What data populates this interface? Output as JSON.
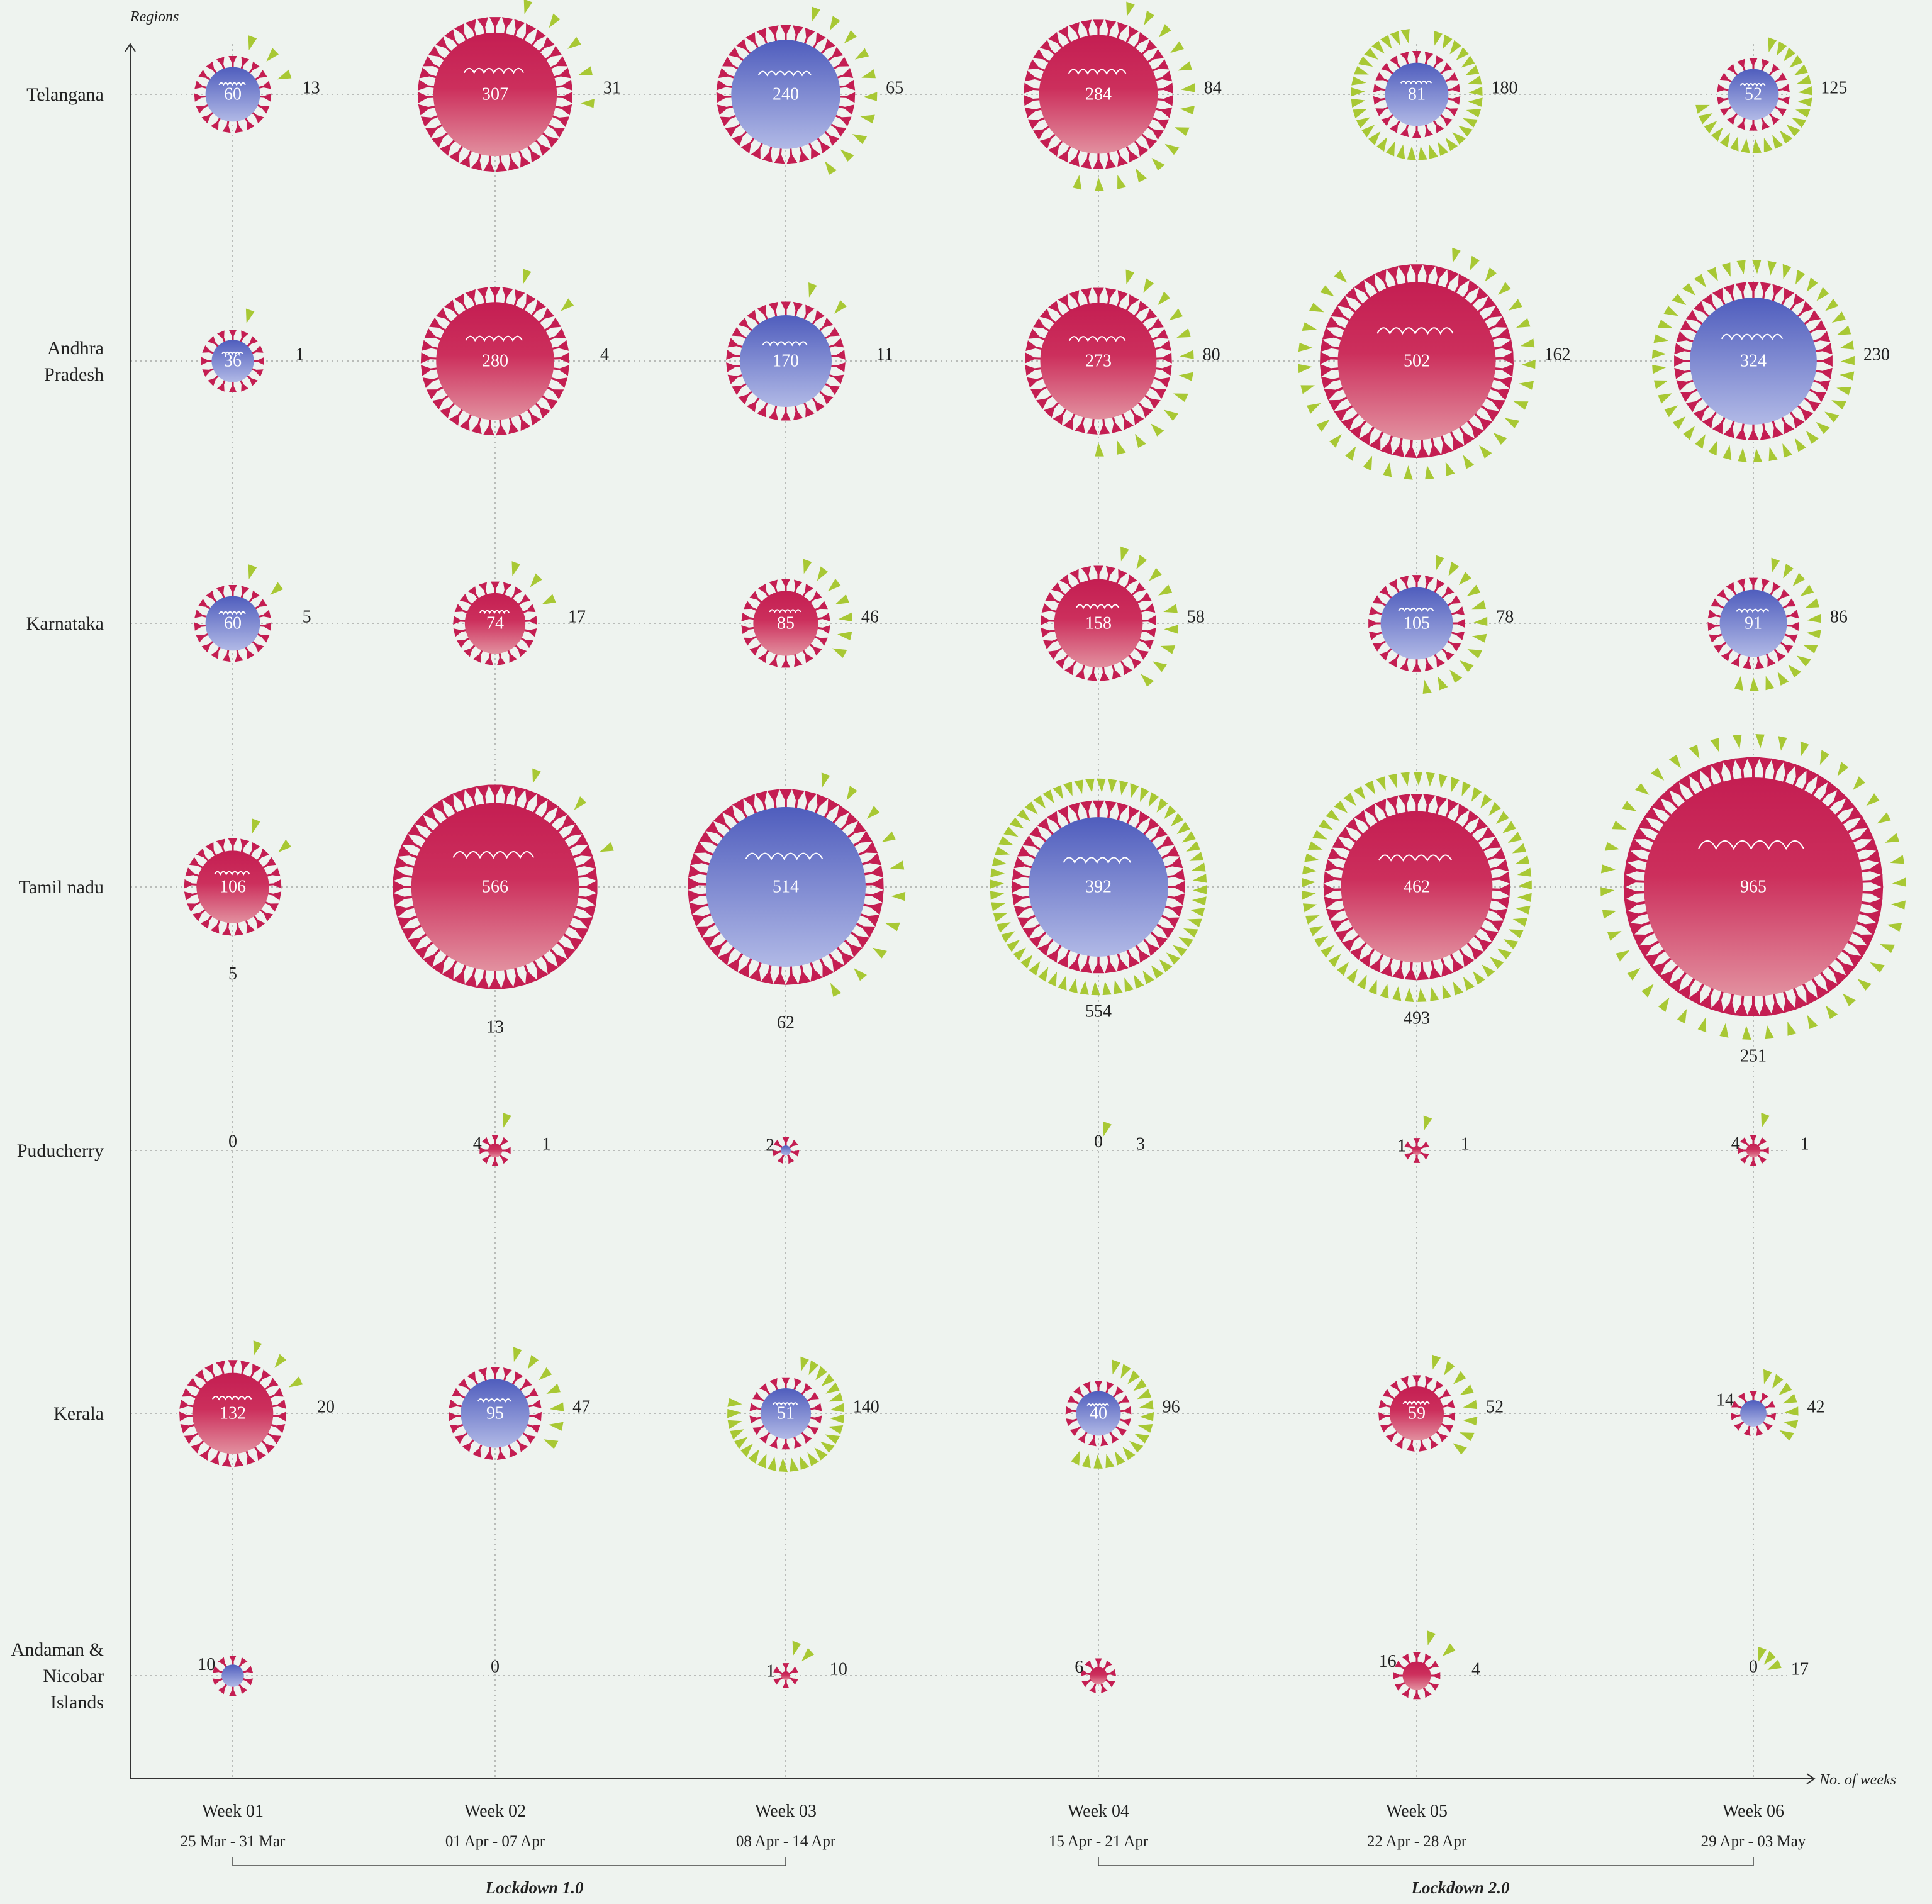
{
  "chart_data": {
    "type": "bubble-grid",
    "y_axis_title": "Regions",
    "x_axis_title": "No. of weeks",
    "weeks": [
      {
        "label": "Week 01",
        "dates": "25 Mar - 31 Mar"
      },
      {
        "label": "Week 02",
        "dates": "01 Apr - 07 Apr"
      },
      {
        "label": "Week 03",
        "dates": "08 Apr - 14 Apr"
      },
      {
        "label": "Week 04",
        "dates": "15 Apr - 21 Apr"
      },
      {
        "label": "Week 05",
        "dates": "22 Apr - 28 Apr"
      },
      {
        "label": "Week 06",
        "dates": "29 Apr - 03 May"
      }
    ],
    "phases": [
      {
        "label": "Lockdown 1.0",
        "from_week": 0,
        "to_week": 2
      },
      {
        "label": "Lockdown 2.0",
        "from_week": 3,
        "to_week": 5
      }
    ],
    "regions": [
      {
        "name": "Telangana",
        "cases": [
          60,
          307,
          240,
          284,
          81,
          52
        ],
        "recovered": [
          13,
          31,
          65,
          84,
          180,
          125
        ]
      },
      {
        "name": "Andhra Pradesh",
        "cases": [
          36,
          280,
          170,
          273,
          502,
          324
        ],
        "recovered": [
          1,
          4,
          11,
          80,
          162,
          230
        ]
      },
      {
        "name": "Karnataka",
        "cases": [
          60,
          74,
          85,
          158,
          105,
          91
        ],
        "recovered": [
          5,
          17,
          46,
          58,
          78,
          86
        ]
      },
      {
        "name": "Tamil nadu",
        "cases": [
          106,
          566,
          514,
          392,
          462,
          965
        ],
        "recovered": [
          5,
          13,
          62,
          554,
          493,
          251
        ]
      },
      {
        "name": "Puducherry",
        "cases": [
          0,
          4,
          2,
          0,
          1,
          4
        ],
        "recovered": [
          0,
          1,
          0,
          3,
          1,
          1
        ]
      },
      {
        "name": "Kerala",
        "cases": [
          132,
          95,
          51,
          40,
          59,
          14
        ],
        "recovered": [
          20,
          47,
          140,
          96,
          52,
          42
        ]
      },
      {
        "name": "Andaman & Nicobar Islands",
        "cases": [
          10,
          0,
          1,
          6,
          16,
          0
        ],
        "recovered": [
          0,
          0,
          10,
          0,
          4,
          17
        ]
      }
    ],
    "colors": {
      "increase": "#c41e52",
      "decrease": "#6270c4",
      "recovered": "#a8c834"
    }
  }
}
